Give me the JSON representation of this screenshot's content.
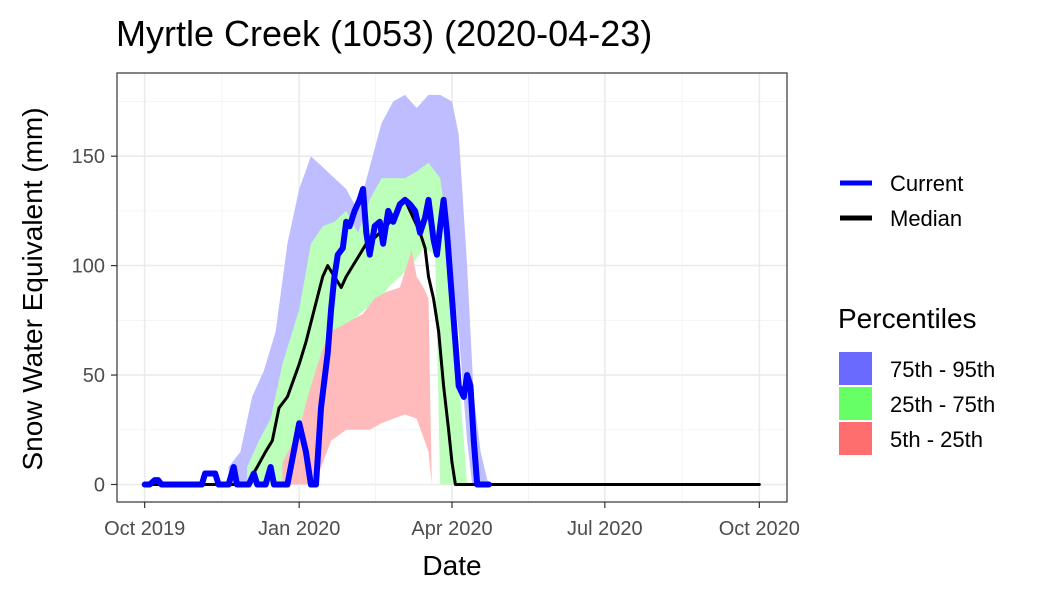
{
  "chart_data": {
    "type": "area",
    "title": "Myrtle Creek (1053) (2020-04-23)",
    "xlabel": "Date",
    "ylabel": "Snow Water Equivalent (mm)",
    "xlim": [
      "2019-10-01",
      "2020-10-01"
    ],
    "ylim": [
      -8,
      188
    ],
    "x_ticks": [
      {
        "date": "2019-10-01",
        "label": "Oct 2019"
      },
      {
        "date": "2020-01-01",
        "label": "Jan 2020"
      },
      {
        "date": "2020-04-01",
        "label": "Apr 2020"
      },
      {
        "date": "2020-07-01",
        "label": "Jul 2020"
      },
      {
        "date": "2020-10-01",
        "label": "Oct 2020"
      }
    ],
    "y_ticks": [
      0,
      50,
      100,
      150
    ],
    "grid": true,
    "legend": {
      "lines_title": "",
      "lines": [
        {
          "name": "Current",
          "color": "#0000ff"
        },
        {
          "name": "Median",
          "color": "#000000"
        }
      ],
      "bands_title": "Percentiles",
      "bands": [
        {
          "name": "75th - 95th",
          "color": "#6a6aff"
        },
        {
          "name": "25th - 75th",
          "color": "#66ff66"
        },
        {
          "name": "5th - 25th",
          "color": "#ff6e6e"
        }
      ]
    },
    "bands": [
      {
        "name": "75th - 95th",
        "fill": "#bdbdff",
        "lower": [
          [
            "2019-11-20",
            0
          ],
          [
            "2019-11-27",
            0
          ],
          [
            "2019-12-04",
            0
          ],
          [
            "2019-12-11",
            0
          ],
          [
            "2019-12-18",
            0
          ],
          [
            "2019-12-25",
            0
          ],
          [
            "2020-01-01",
            0
          ],
          [
            "2020-01-08",
            20
          ],
          [
            "2020-01-15",
            75
          ],
          [
            "2020-01-22",
            90
          ],
          [
            "2020-01-29",
            100
          ],
          [
            "2020-02-05",
            105
          ],
          [
            "2020-02-12",
            110
          ],
          [
            "2020-02-19",
            115
          ],
          [
            "2020-02-26",
            115
          ],
          [
            "2020-03-04",
            118
          ],
          [
            "2020-03-11",
            125
          ],
          [
            "2020-03-18",
            130
          ],
          [
            "2020-03-25",
            120
          ],
          [
            "2020-04-01",
            95
          ],
          [
            "2020-04-05",
            70
          ],
          [
            "2020-04-10",
            20
          ],
          [
            "2020-04-13",
            0
          ]
        ],
        "upper": [
          [
            "2019-11-20",
            8
          ],
          [
            "2019-11-27",
            15
          ],
          [
            "2019-12-04",
            40
          ],
          [
            "2019-12-11",
            52
          ],
          [
            "2019-12-18",
            70
          ],
          [
            "2019-12-25",
            110
          ],
          [
            "2020-01-01",
            135
          ],
          [
            "2020-01-08",
            150
          ],
          [
            "2020-01-15",
            145
          ],
          [
            "2020-01-22",
            140
          ],
          [
            "2020-01-29",
            135
          ],
          [
            "2020-02-05",
            125
          ],
          [
            "2020-02-12",
            145
          ],
          [
            "2020-02-19",
            165
          ],
          [
            "2020-02-26",
            175
          ],
          [
            "2020-03-04",
            178
          ],
          [
            "2020-03-11",
            172
          ],
          [
            "2020-03-18",
            178
          ],
          [
            "2020-03-25",
            178
          ],
          [
            "2020-04-01",
            175
          ],
          [
            "2020-04-05",
            160
          ],
          [
            "2020-04-10",
            100
          ],
          [
            "2020-04-14",
            40
          ],
          [
            "2020-04-18",
            15
          ],
          [
            "2020-04-22",
            2
          ],
          [
            "2020-04-24",
            0
          ]
        ]
      },
      {
        "name": "25th - 75th",
        "fill": "#bbffbb",
        "lower": [
          [
            "2019-12-01",
            0
          ],
          [
            "2019-12-08",
            0
          ],
          [
            "2019-12-15",
            0
          ],
          [
            "2019-12-22",
            0
          ],
          [
            "2020-01-01",
            0
          ],
          [
            "2020-01-05",
            20
          ],
          [
            "2020-01-12",
            55
          ],
          [
            "2020-01-19",
            65
          ],
          [
            "2020-01-26",
            70
          ],
          [
            "2020-02-02",
            75
          ],
          [
            "2020-02-09",
            80
          ],
          [
            "2020-02-16",
            82
          ],
          [
            "2020-02-23",
            90
          ],
          [
            "2020-03-01",
            95
          ],
          [
            "2020-03-08",
            100
          ],
          [
            "2020-03-15",
            108
          ],
          [
            "2020-03-22",
            105
          ],
          [
            "2020-03-25",
            0
          ]
        ],
        "upper": [
          [
            "2019-12-01",
            8
          ],
          [
            "2019-12-08",
            20
          ],
          [
            "2019-12-15",
            30
          ],
          [
            "2019-12-22",
            55
          ],
          [
            "2020-01-01",
            80
          ],
          [
            "2020-01-08",
            110
          ],
          [
            "2020-01-15",
            118
          ],
          [
            "2020-01-22",
            120
          ],
          [
            "2020-01-29",
            125
          ],
          [
            "2020-02-05",
            115
          ],
          [
            "2020-02-12",
            130
          ],
          [
            "2020-02-19",
            140
          ],
          [
            "2020-02-26",
            140
          ],
          [
            "2020-03-04",
            140
          ],
          [
            "2020-03-11",
            143
          ],
          [
            "2020-03-18",
            147
          ],
          [
            "2020-03-25",
            140
          ],
          [
            "2020-04-01",
            100
          ],
          [
            "2020-04-04",
            60
          ],
          [
            "2020-04-08",
            20
          ],
          [
            "2020-04-10",
            0
          ]
        ]
      },
      {
        "name": "5th - 25th",
        "fill": "#ffbbbb",
        "lower": [
          [
            "2019-12-22",
            0
          ],
          [
            "2020-01-01",
            0
          ],
          [
            "2020-01-10",
            0
          ],
          [
            "2020-01-20",
            20
          ],
          [
            "2020-01-29",
            25
          ],
          [
            "2020-02-05",
            25
          ],
          [
            "2020-02-12",
            25
          ],
          [
            "2020-02-19",
            28
          ],
          [
            "2020-02-26",
            30
          ],
          [
            "2020-03-04",
            32
          ],
          [
            "2020-03-11",
            30
          ],
          [
            "2020-03-18",
            15
          ],
          [
            "2020-03-20",
            0
          ]
        ],
        "upper": [
          [
            "2019-12-22",
            10
          ],
          [
            "2020-01-01",
            25
          ],
          [
            "2020-01-06",
            40
          ],
          [
            "2020-01-10",
            50
          ],
          [
            "2020-01-15",
            62
          ],
          [
            "2020-01-20",
            70
          ],
          [
            "2020-01-25",
            72
          ],
          [
            "2020-02-01",
            75
          ],
          [
            "2020-02-08",
            78
          ],
          [
            "2020-02-15",
            85
          ],
          [
            "2020-02-22",
            88
          ],
          [
            "2020-03-01",
            90
          ],
          [
            "2020-03-05",
            100
          ],
          [
            "2020-03-08",
            107
          ],
          [
            "2020-03-11",
            95
          ],
          [
            "2020-03-15",
            90
          ],
          [
            "2020-03-18",
            85
          ],
          [
            "2020-03-20",
            0
          ]
        ]
      }
    ],
    "series": [
      {
        "name": "Current",
        "color": "#0000ff",
        "width": 6,
        "points": [
          [
            "2019-10-01",
            0
          ],
          [
            "2019-10-04",
            0
          ],
          [
            "2019-10-07",
            2
          ],
          [
            "2019-10-09",
            2
          ],
          [
            "2019-10-11",
            0
          ],
          [
            "2019-10-18",
            0
          ],
          [
            "2019-10-25",
            0
          ],
          [
            "2019-11-01",
            0
          ],
          [
            "2019-11-04",
            0
          ],
          [
            "2019-11-06",
            5
          ],
          [
            "2019-11-12",
            5
          ],
          [
            "2019-11-14",
            0
          ],
          [
            "2019-11-20",
            0
          ],
          [
            "2019-11-23",
            8
          ],
          [
            "2019-11-25",
            0
          ],
          [
            "2019-12-02",
            0
          ],
          [
            "2019-12-05",
            5
          ],
          [
            "2019-12-07",
            0
          ],
          [
            "2019-12-12",
            0
          ],
          [
            "2019-12-15",
            8
          ],
          [
            "2019-12-17",
            0
          ],
          [
            "2019-12-25",
            0
          ],
          [
            "2019-12-28",
            12
          ],
          [
            "2020-01-01",
            28
          ],
          [
            "2020-01-05",
            15
          ],
          [
            "2020-01-08",
            0
          ],
          [
            "2020-01-11",
            0
          ],
          [
            "2020-01-14",
            35
          ],
          [
            "2020-01-18",
            60
          ],
          [
            "2020-01-20",
            80
          ],
          [
            "2020-01-22",
            95
          ],
          [
            "2020-01-24",
            105
          ],
          [
            "2020-01-27",
            108
          ],
          [
            "2020-01-29",
            120
          ],
          [
            "2020-01-31",
            118
          ],
          [
            "2020-02-03",
            125
          ],
          [
            "2020-02-06",
            130
          ],
          [
            "2020-02-08",
            135
          ],
          [
            "2020-02-10",
            115
          ],
          [
            "2020-02-12",
            105
          ],
          [
            "2020-02-15",
            118
          ],
          [
            "2020-02-18",
            120
          ],
          [
            "2020-02-20",
            110
          ],
          [
            "2020-02-23",
            125
          ],
          [
            "2020-02-26",
            120
          ],
          [
            "2020-03-01",
            128
          ],
          [
            "2020-03-04",
            130
          ],
          [
            "2020-03-07",
            128
          ],
          [
            "2020-03-10",
            125
          ],
          [
            "2020-03-13",
            115
          ],
          [
            "2020-03-16",
            122
          ],
          [
            "2020-03-18",
            130
          ],
          [
            "2020-03-21",
            112
          ],
          [
            "2020-03-23",
            105
          ],
          [
            "2020-03-25",
            118
          ],
          [
            "2020-03-27",
            130
          ],
          [
            "2020-03-29",
            115
          ],
          [
            "2020-03-31",
            95
          ],
          [
            "2020-04-02",
            75
          ],
          [
            "2020-04-05",
            45
          ],
          [
            "2020-04-08",
            40
          ],
          [
            "2020-04-10",
            50
          ],
          [
            "2020-04-12",
            45
          ],
          [
            "2020-04-14",
            20
          ],
          [
            "2020-04-16",
            0
          ],
          [
            "2020-04-23",
            0
          ]
        ]
      },
      {
        "name": "Median",
        "color": "#000000",
        "width": 3,
        "points": [
          [
            "2019-10-01",
            0
          ],
          [
            "2019-11-10",
            0
          ],
          [
            "2019-11-20",
            0
          ],
          [
            "2019-12-01",
            0
          ],
          [
            "2019-12-07",
            8
          ],
          [
            "2019-12-12",
            15
          ],
          [
            "2019-12-16",
            20
          ],
          [
            "2019-12-20",
            35
          ],
          [
            "2019-12-25",
            40
          ],
          [
            "2020-01-01",
            55
          ],
          [
            "2020-01-05",
            65
          ],
          [
            "2020-01-10",
            80
          ],
          [
            "2020-01-15",
            95
          ],
          [
            "2020-01-18",
            100
          ],
          [
            "2020-01-22",
            95
          ],
          [
            "2020-01-26",
            90
          ],
          [
            "2020-01-29",
            95
          ],
          [
            "2020-02-02",
            100
          ],
          [
            "2020-02-06",
            105
          ],
          [
            "2020-02-10",
            110
          ],
          [
            "2020-02-14",
            112
          ],
          [
            "2020-02-18",
            115
          ],
          [
            "2020-02-22",
            118
          ],
          [
            "2020-02-26",
            122
          ],
          [
            "2020-03-01",
            128
          ],
          [
            "2020-03-04",
            130
          ],
          [
            "2020-03-07",
            125
          ],
          [
            "2020-03-10",
            120
          ],
          [
            "2020-03-13",
            115
          ],
          [
            "2020-03-16",
            108
          ],
          [
            "2020-03-18",
            95
          ],
          [
            "2020-03-21",
            85
          ],
          [
            "2020-03-24",
            70
          ],
          [
            "2020-03-27",
            45
          ],
          [
            "2020-03-30",
            25
          ],
          [
            "2020-04-01",
            10
          ],
          [
            "2020-04-03",
            0
          ],
          [
            "2020-06-01",
            0
          ],
          [
            "2020-08-01",
            0
          ],
          [
            "2020-10-01",
            0
          ]
        ]
      }
    ]
  }
}
